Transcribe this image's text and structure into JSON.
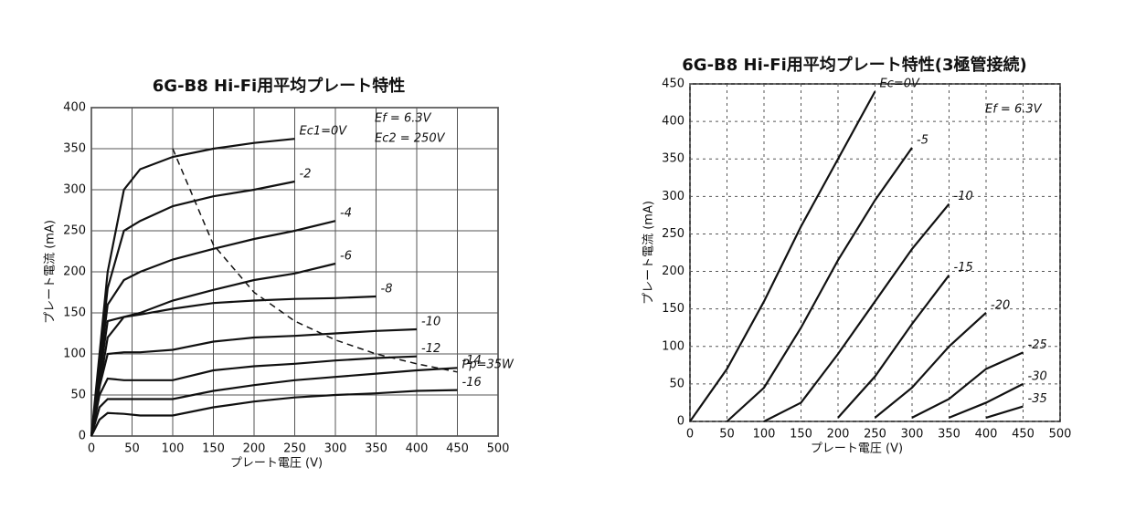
{
  "chart_data": [
    {
      "type": "line",
      "title": "6G-B8 Hi-Fi用平均プレート特性",
      "x_label": "プレート電圧 (V)",
      "y_label": "プレート電流 (mA)",
      "annotations": [
        "Ef = 6.3V",
        "Ec2 = 250V"
      ],
      "x": [
        0,
        10,
        20,
        40,
        60,
        100,
        150,
        200,
        250,
        300,
        350,
        400,
        450
      ],
      "xlim": [
        0,
        500
      ],
      "xticks": [
        0,
        50,
        100,
        150,
        200,
        250,
        300,
        350,
        400,
        450,
        500
      ],
      "ylim": [
        0,
        400
      ],
      "yticks": [
        0,
        50,
        100,
        150,
        200,
        250,
        300,
        350,
        400
      ],
      "grid": true,
      "color": "#111111",
      "series": [
        {
          "name": "Ec1=0V",
          "values": [
            0,
            100,
            200,
            300,
            325,
            340,
            350,
            357,
            362,
            null,
            null,
            null,
            null
          ]
        },
        {
          "name": "-2",
          "values": [
            0,
            90,
            180,
            250,
            262,
            280,
            292,
            300,
            310,
            null,
            null,
            null,
            null
          ]
        },
        {
          "name": "-4",
          "values": [
            0,
            80,
            160,
            190,
            200,
            215,
            228,
            240,
            250,
            262,
            null,
            null,
            null
          ]
        },
        {
          "name": "-6",
          "values": [
            0,
            70,
            140,
            145,
            150,
            165,
            178,
            190,
            198,
            210,
            null,
            null,
            null
          ]
        },
        {
          "name": "-8",
          "values": [
            0,
            60,
            120,
            145,
            148,
            155,
            162,
            165,
            167,
            168,
            170,
            null,
            null
          ]
        },
        {
          "name": "-10",
          "values": [
            0,
            60,
            100,
            102,
            102,
            105,
            115,
            120,
            122,
            125,
            128,
            130,
            null
          ]
        },
        {
          "name": "-12",
          "values": [
            0,
            50,
            70,
            68,
            68,
            68,
            80,
            85,
            88,
            92,
            95,
            97,
            null
          ]
        },
        {
          "name": "-14",
          "values": [
            0,
            35,
            45,
            45,
            45,
            45,
            55,
            62,
            68,
            72,
            76,
            80,
            83
          ]
        },
        {
          "name": "-16",
          "values": [
            0,
            20,
            28,
            27,
            25,
            25,
            35,
            42,
            47,
            50,
            52,
            55,
            56
          ]
        },
        {
          "name": "Pp=35W",
          "dashed": true,
          "values": [
            null,
            null,
            null,
            null,
            null,
            350,
            233,
            175,
            140,
            117,
            100,
            88,
            78
          ]
        }
      ]
    },
    {
      "type": "line",
      "title": "6G-B8 Hi-Fi用平均プレート特性(3極管接続)",
      "x_label": "プレート電圧 (V)",
      "y_label": "プレート電流 (mA)",
      "annotations": [
        "Ef = 6.3V"
      ],
      "x": [
        0,
        50,
        100,
        150,
        200,
        250,
        300,
        350,
        400,
        450,
        500
      ],
      "xlim": [
        0,
        500
      ],
      "xticks": [
        0,
        50,
        100,
        150,
        200,
        250,
        300,
        350,
        400,
        450,
        500
      ],
      "ylim": [
        0,
        450
      ],
      "yticks": [
        0,
        50,
        100,
        150,
        200,
        250,
        300,
        350,
        400,
        450
      ],
      "grid": true,
      "color": "#111111",
      "series": [
        {
          "name": "Ec=0V",
          "values": [
            0,
            70,
            160,
            260,
            350,
            440,
            null,
            null,
            null,
            null,
            null
          ]
        },
        {
          "name": "-5",
          "values": [
            null,
            0,
            45,
            125,
            215,
            295,
            365,
            null,
            null,
            null,
            null
          ]
        },
        {
          "name": "-10",
          "values": [
            null,
            null,
            0,
            25,
            90,
            160,
            230,
            290,
            null,
            null,
            null
          ]
        },
        {
          "name": "-15",
          "values": [
            null,
            null,
            null,
            null,
            5,
            60,
            130,
            195,
            null,
            null,
            null
          ]
        },
        {
          "name": "-20",
          "values": [
            null,
            null,
            null,
            null,
            null,
            5,
            45,
            100,
            145,
            null,
            null
          ]
        },
        {
          "name": "-25",
          "values": [
            null,
            null,
            null,
            null,
            null,
            null,
            5,
            30,
            70,
            92,
            null
          ]
        },
        {
          "name": "-30",
          "values": [
            null,
            null,
            null,
            null,
            null,
            null,
            null,
            5,
            25,
            50,
            null
          ]
        },
        {
          "name": "-35",
          "values": [
            null,
            null,
            null,
            null,
            null,
            null,
            null,
            null,
            5,
            20,
            null
          ]
        }
      ]
    }
  ]
}
